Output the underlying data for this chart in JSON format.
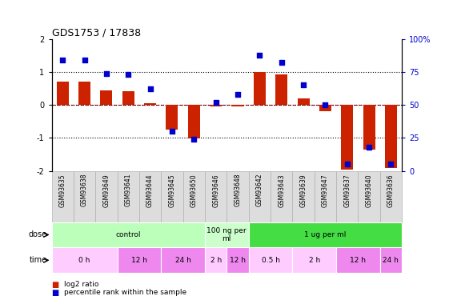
{
  "title": "GDS1753 / 17838",
  "samples": [
    "GSM93635",
    "GSM93638",
    "GSM93649",
    "GSM93641",
    "GSM93644",
    "GSM93645",
    "GSM93650",
    "GSM93646",
    "GSM93648",
    "GSM93642",
    "GSM93643",
    "GSM93639",
    "GSM93647",
    "GSM93637",
    "GSM93640",
    "GSM93636"
  ],
  "log2_ratio": [
    0.72,
    0.7,
    0.45,
    0.42,
    0.05,
    -0.75,
    -1.02,
    -0.05,
    -0.05,
    1.0,
    0.92,
    0.2,
    -0.18,
    -1.95,
    -1.35,
    -1.92
  ],
  "percentile": [
    84,
    84,
    74,
    73,
    62,
    30,
    24,
    52,
    58,
    88,
    82,
    65,
    50,
    5,
    18,
    5
  ],
  "ylim": [
    -2,
    2
  ],
  "percentile_ylim": [
    0,
    100
  ],
  "bar_color": "#cc2200",
  "dot_color": "#0000cc",
  "dose_groups": [
    {
      "label": "control",
      "start": 0,
      "end": 7,
      "color": "#bbffbb"
    },
    {
      "label": "100 ng per\nml",
      "start": 7,
      "end": 9,
      "color": "#ccffcc"
    },
    {
      "label": "1 ug per ml",
      "start": 9,
      "end": 16,
      "color": "#44dd44"
    }
  ],
  "time_groups": [
    {
      "label": "0 h",
      "start": 0,
      "end": 3,
      "color": "#ffccff"
    },
    {
      "label": "12 h",
      "start": 3,
      "end": 5,
      "color": "#ee88ee"
    },
    {
      "label": "24 h",
      "start": 5,
      "end": 7,
      "color": "#ee88ee"
    },
    {
      "label": "2 h",
      "start": 7,
      "end": 8,
      "color": "#ffccff"
    },
    {
      "label": "12 h",
      "start": 8,
      "end": 9,
      "color": "#ee88ee"
    },
    {
      "label": "0.5 h",
      "start": 9,
      "end": 11,
      "color": "#ffccff"
    },
    {
      "label": "2 h",
      "start": 11,
      "end": 13,
      "color": "#ffccff"
    },
    {
      "label": "12 h",
      "start": 13,
      "end": 15,
      "color": "#ee88ee"
    },
    {
      "label": "24 h",
      "start": 15,
      "end": 16,
      "color": "#ee88ee"
    }
  ],
  "legend_items": [
    {
      "label": "log2 ratio",
      "color": "#cc2200"
    },
    {
      "label": "percentile rank within the sample",
      "color": "#0000cc"
    }
  ]
}
